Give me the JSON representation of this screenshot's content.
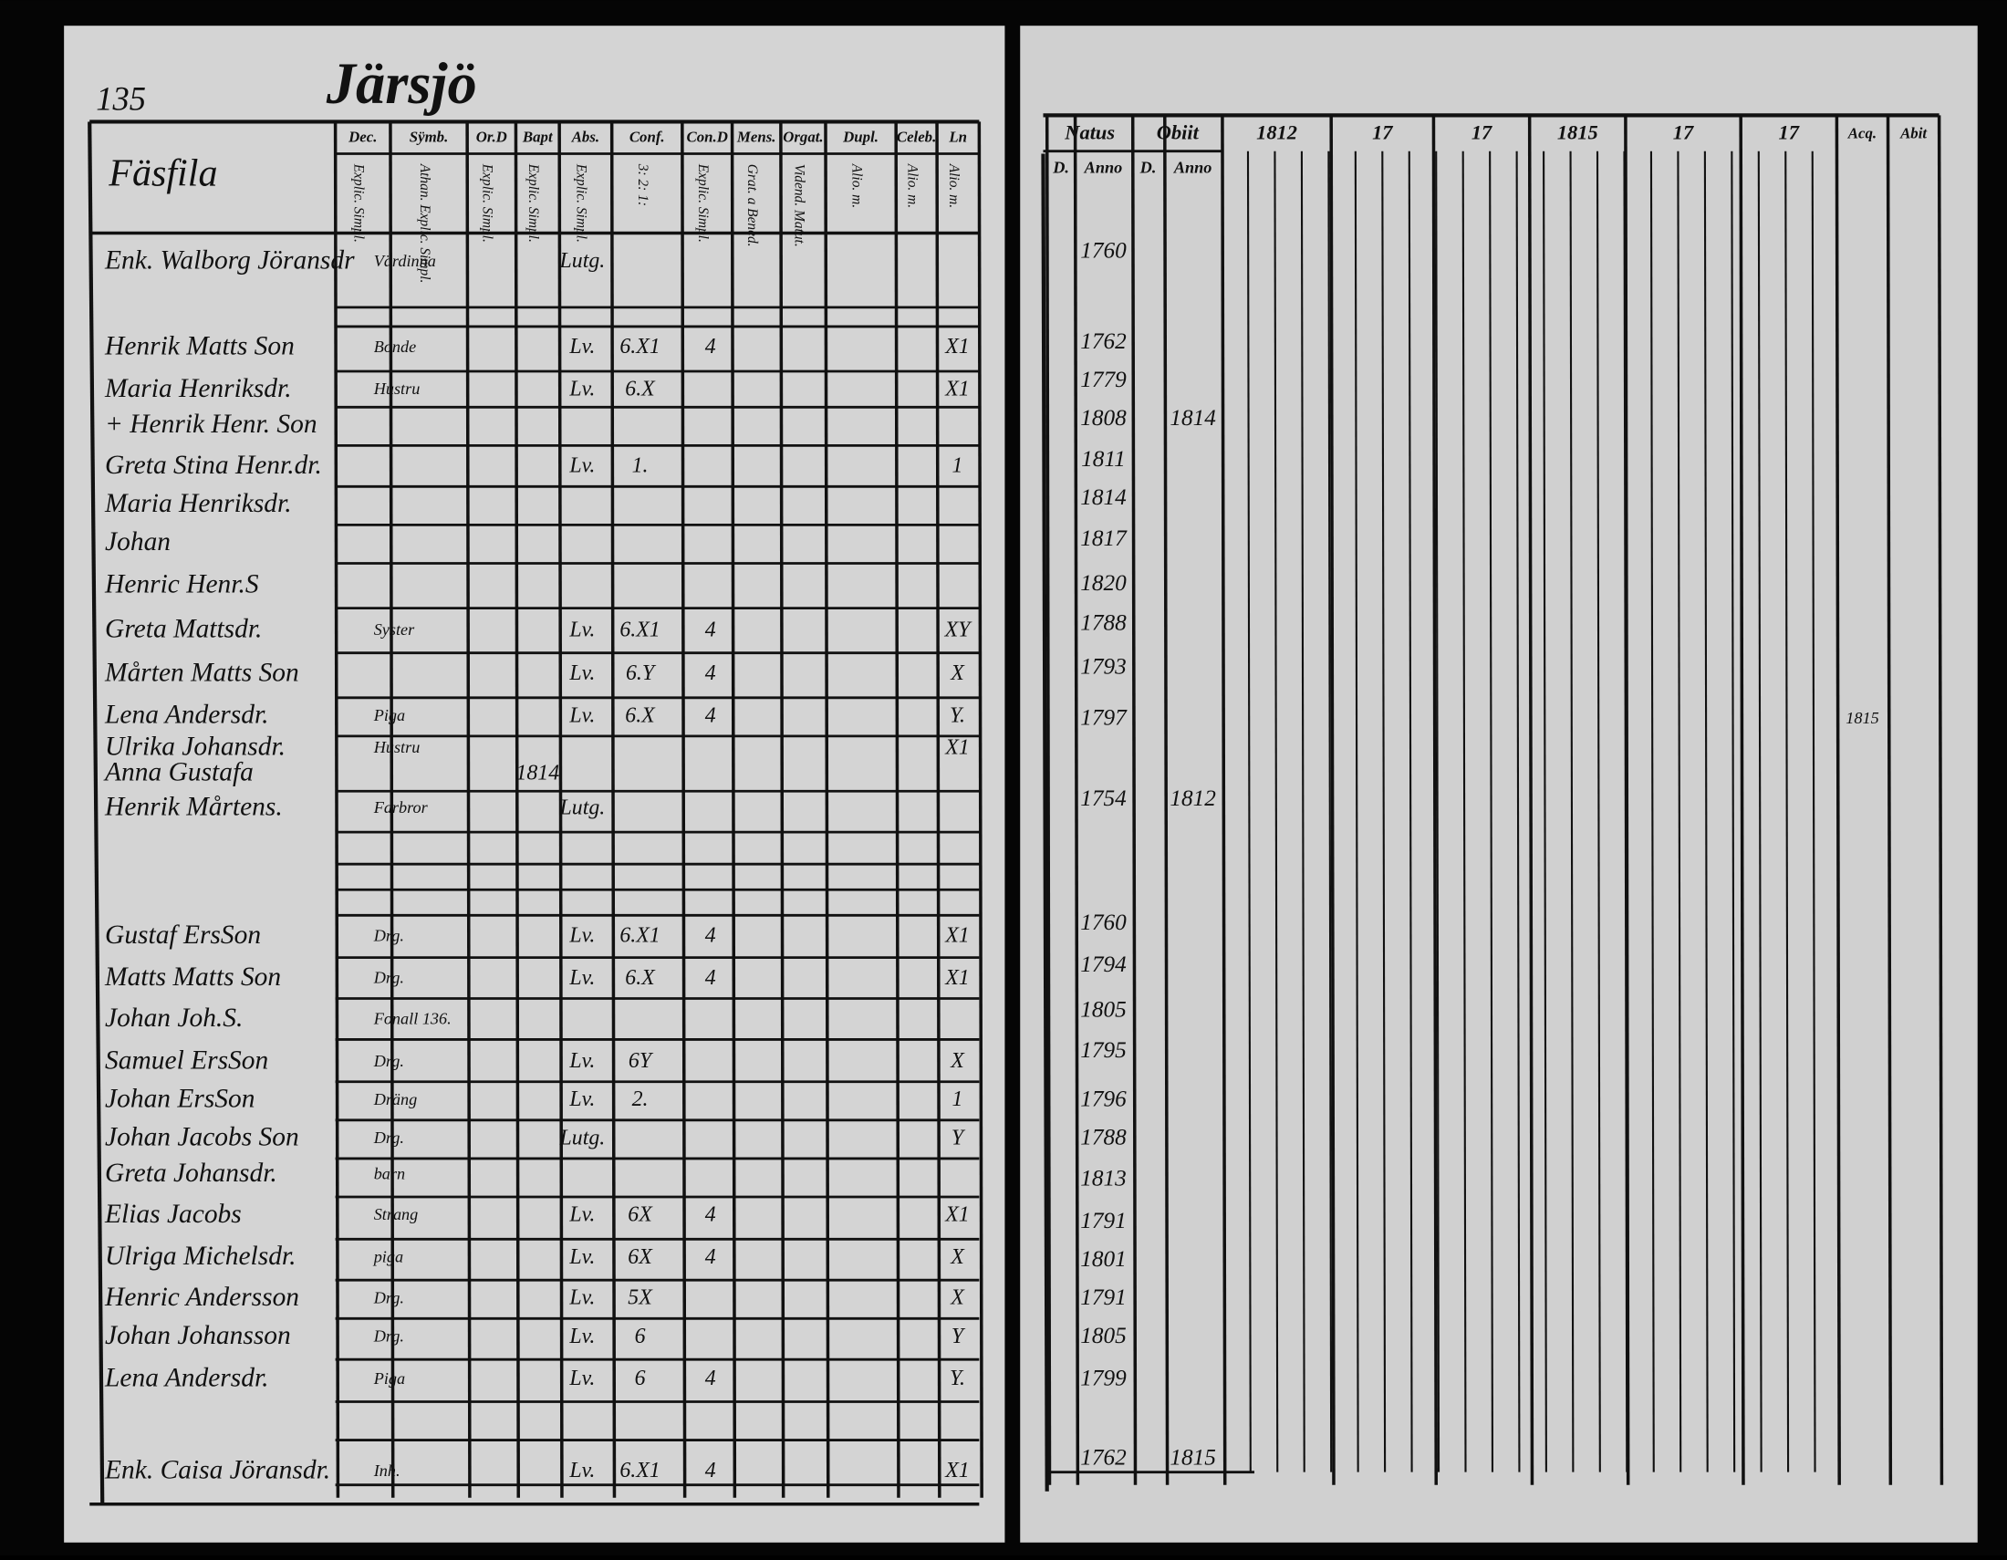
{
  "left": {
    "page_number": "135",
    "title": "Järsjö",
    "section": "Fäsfila",
    "columns": [
      "Dec.",
      "Sÿmb.",
      "Or.D",
      "Bapt",
      "Abs.",
      "Conf.",
      "Con.D",
      "Mens.",
      "Orgat.",
      "Dupl.",
      "Celeb.",
      "Ln"
    ],
    "subcolumns": [
      "Explic. Simpl.",
      "Athan. Explic. Simpl.",
      "Explic. Simpl.",
      "Explic. Simpl.",
      "Explic. Simpl.",
      "3: 2: 1:",
      "Explic. Simpl.",
      "Grat. a Bened.",
      "Vidend. Matut.",
      "Alio. m.",
      "Alio. m.",
      "Alio. m."
    ],
    "rows": [
      {
        "name": "Enk. Walborg Jöransdr",
        "occupation": "Värdinna",
        "abs": "Lutg."
      },
      {
        "name": "Henrik Matts Son",
        "occupation": "Bonde",
        "abs": "Lv.",
        "conf": "6.X1",
        "cond": "4",
        "ln": "X1"
      },
      {
        "name": "Maria Henriksdr.",
        "occupation": "Hustru",
        "abs": "Lv.",
        "conf": "6.X",
        "ln": "X1"
      },
      {
        "name": "+ Henrik Henr. Son"
      },
      {
        "name": "Greta Stina Henr.dr.",
        "abs": "Lv.",
        "conf": "1.",
        "ln": "1"
      },
      {
        "name": "Maria Henriksdr."
      },
      {
        "name": "Johan"
      },
      {
        "name": "Henric Henr.S"
      },
      {
        "name": "Greta Mattsdr.",
        "occupation": "Syster",
        "abs": "Lv.",
        "conf": "6.X1",
        "cond": "4",
        "ln": "XY"
      },
      {
        "name": "Mårten Matts Son",
        "abs": "Lv.",
        "conf": "6.Y",
        "cond": "4",
        "ln": "X"
      },
      {
        "name": "Lena Andersdr.",
        "occupation": "Piga",
        "abs": "Lv.",
        "conf": "6.X",
        "cond": "4",
        "ln": "Y."
      },
      {
        "name": "Ulrika Johansdr.",
        "occupation": "Hustru",
        "ln": "X1"
      },
      {
        "name": "Anna Gustafa",
        "bapt": "1814"
      },
      {
        "name": "Henrik Mårtens.",
        "occupation": "Farbror",
        "abs": "Lutg."
      },
      {
        "name": "Gustaf ErsSon",
        "occupation": "Drg.",
        "abs": "Lv.",
        "conf": "6.X1",
        "cond": "4",
        "ln": "X1"
      },
      {
        "name": "Matts Matts Son",
        "occupation": "Drg.",
        "abs": "Lv.",
        "conf": "6.X",
        "cond": "4",
        "ln": "X1"
      },
      {
        "name": "Johan Joh.S.",
        "occupation": "Fonall 136."
      },
      {
        "name": "Samuel ErsSon",
        "occupation": "Drg.",
        "abs": "Lv.",
        "conf": "6Y",
        "ln": "X"
      },
      {
        "name": "Johan ErsSon",
        "occupation": "Dräng",
        "abs": "Lv.",
        "conf": "2.",
        "ln": "1"
      },
      {
        "name": "Johan Jacobs Son",
        "occupation": "Drg.",
        "abs": "Lutg.",
        "ln": "Y"
      },
      {
        "name": "Greta Johansdr.",
        "occupation": "barn"
      },
      {
        "name": "Elias Jacobs",
        "occupation": "Strang",
        "abs": "Lv.",
        "conf": "6X",
        "cond": "4",
        "ln": "X1"
      },
      {
        "name": "Ulriga Michelsdr.",
        "occupation": "piga",
        "abs": "Lv.",
        "conf": "6X",
        "cond": "4",
        "ln": "X"
      },
      {
        "name": "Henric Andersson",
        "occupation": "Drg.",
        "abs": "Lv.",
        "conf": "5X",
        "ln": "X"
      },
      {
        "name": "Johan Johansson",
        "occupation": "Drg.",
        "abs": "Lv.",
        "conf": "6",
        "ln": "Y"
      },
      {
        "name": "Lena Andersdr.",
        "occupation": "Piga",
        "abs": "Lv.",
        "conf": "6",
        "cond": "4",
        "ln": "Y."
      },
      {
        "name": "Enk. Caisa Jöransdr.",
        "occupation": "Inh.",
        "abs": "Lv.",
        "conf": "6.X1",
        "cond": "4",
        "ln": "X1"
      }
    ]
  },
  "right": {
    "columns": [
      "Natus",
      "Obiit",
      "1812",
      "17",
      "17",
      "1815",
      "17",
      "17",
      "Acq.",
      "Abit"
    ],
    "subcolumns": [
      "D.",
      "Anno",
      "D.",
      "Anno"
    ],
    "rows": [
      {
        "anno": "1760"
      },
      {
        "anno": "1762"
      },
      {
        "anno": "1779"
      },
      {
        "anno": "1808",
        "obiit": "1814"
      },
      {
        "anno": "1811"
      },
      {
        "anno": "1814"
      },
      {
        "anno": "1817"
      },
      {
        "anno": "1820"
      },
      {
        "anno": "1788"
      },
      {
        "anno": "1793"
      },
      {
        "anno": "1797",
        "acq": "1815"
      },
      {
        "anno": "1754",
        "obiit": "1812"
      },
      {
        "anno": "1760"
      },
      {
        "anno": "1794"
      },
      {
        "anno": "1805"
      },
      {
        "anno": "1795"
      },
      {
        "anno": "1796"
      },
      {
        "anno": "1788"
      },
      {
        "anno": "1813"
      },
      {
        "anno": "1791"
      },
      {
        "anno": "1801"
      },
      {
        "anno": "1791"
      },
      {
        "anno": "1805"
      },
      {
        "anno": "1799"
      },
      {
        "anno": "1762",
        "obiit": "1815"
      }
    ]
  }
}
